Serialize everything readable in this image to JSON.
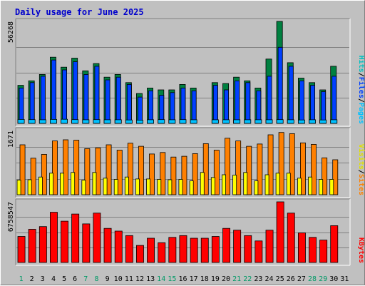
{
  "chart_data": {
    "title": "Daily usage for June 2025",
    "type": "bar",
    "categories": [
      "1",
      "2",
      "3",
      "4",
      "5",
      "6",
      "7",
      "8",
      "9",
      "10",
      "11",
      "12",
      "13",
      "14",
      "15",
      "16",
      "17",
      "18",
      "19",
      "20",
      "21",
      "22",
      "23",
      "24",
      "25",
      "26",
      "27",
      "28",
      "29",
      "30",
      "31"
    ],
    "weekend_days": [
      "1",
      "7",
      "8",
      "14",
      "15",
      "21",
      "22",
      "28",
      "29"
    ],
    "colors": {
      "title": "#0000cc",
      "weekday_label": "#000000",
      "weekend_label": "#009966",
      "hits": "#008040",
      "files": "#0040ff",
      "pages": "#00c0ff",
      "visits": "#ffff00",
      "sites": "#ff8000",
      "kbytes": "#ff0000",
      "hits_label": "#00c0c0",
      "files_label": "#0040ff",
      "pages_label": "#00c0ff",
      "sites_label": "#ff8000",
      "visits_label": "#e0e000",
      "kbytes_label": "#ff0000"
    },
    "panels": [
      {
        "name": "hits-files-pages",
        "ymax_label": "56268",
        "ylim": [
          0,
          56268
        ],
        "right_labels": [
          {
            "text": "Pages",
            "color_key": "pages_label"
          },
          {
            "text": "Files",
            "color_key": "files_label"
          },
          {
            "text": "Hits",
            "color_key": "hits_label"
          }
        ],
        "series": [
          {
            "name": "Hits",
            "color_key": "hits",
            "values": [
              21000,
              23500,
              27000,
              36500,
              31000,
              36000,
              29000,
              33000,
              25500,
              27000,
              22500,
              16500,
              19500,
              18500,
              18500,
              21500,
              19500,
              0,
              22500,
              22000,
              25500,
              23500,
              19500,
              35500,
              56268,
              33500,
              25000,
              22500,
              18500,
              31500,
              0
            ]
          },
          {
            "name": "Files",
            "color_key": "files",
            "values": [
              19500,
              22500,
              26000,
              35000,
              29500,
              34000,
              27000,
              31500,
              24000,
              25500,
              21500,
              14500,
              18000,
              15500,
              17000,
              19500,
              18000,
              0,
              21000,
              18500,
              23500,
              22500,
              18000,
              26000,
              42000,
              31500,
              23500,
              21000,
              17500,
              26000,
              0
            ]
          },
          {
            "name": "Pages",
            "color_key": "pages",
            "values": [
              2200,
              2100,
              2000,
              2200,
              2300,
              2100,
              2000,
              2100,
              2000,
              2000,
              1900,
              1800,
              2000,
              2100,
              2000,
              2100,
              2000,
              0,
              2000,
              2000,
              2000,
              2000,
              2000,
              2000,
              2100,
              2000,
              1900,
              2000,
              1900,
              2000,
              0
            ]
          }
        ]
      },
      {
        "name": "visits-sites",
        "ymax_label": "1671",
        "ylim": [
          0,
          1671
        ],
        "right_labels": [
          {
            "text": "Sites",
            "color_key": "sites_label"
          },
          {
            "text": "Visits",
            "color_key": "visits_label"
          }
        ],
        "series": [
          {
            "name": "Sites",
            "color_key": "sites",
            "values": [
              1300,
              950,
              1050,
              1400,
              1430,
              1420,
              1200,
              1220,
              1300,
              1160,
              1340,
              1260,
              1060,
              1100,
              980,
              1000,
              1070,
              1330,
              1160,
              1470,
              1400,
              1260,
              1320,
              1560,
              1620,
              1590,
              1350,
              1310,
              960,
              910,
              0
            ]
          },
          {
            "name": "Visits",
            "color_key": "visits",
            "values": [
              380,
              390,
              460,
              560,
              560,
              580,
              380,
              580,
              430,
              400,
              460,
              410,
              410,
              400,
              390,
              400,
              360,
              580,
              450,
              520,
              510,
              580,
              360,
              520,
              560,
              560,
              430,
              460,
              400,
              400,
              0
            ]
          }
        ]
      },
      {
        "name": "kbytes",
        "ymax_label": "6758547",
        "ylim": [
          0,
          6758547
        ],
        "right_labels": [
          {
            "text": "KBytes",
            "color_key": "kbytes_label"
          }
        ],
        "series": [
          {
            "name": "KBytes",
            "color_key": "kbytes",
            "values": [
              2900000,
              3700000,
              4000000,
              5600000,
              4600000,
              5400000,
              4300000,
              5500000,
              3800000,
              3500000,
              3000000,
              1900000,
              2700000,
              2200000,
              2800000,
              3000000,
              2700000,
              2700000,
              2900000,
              3800000,
              3600000,
              3000000,
              2400000,
              3600000,
              6758547,
              5500000,
              3300000,
              2800000,
              2500000,
              4100000,
              0
            ]
          }
        ]
      }
    ]
  }
}
